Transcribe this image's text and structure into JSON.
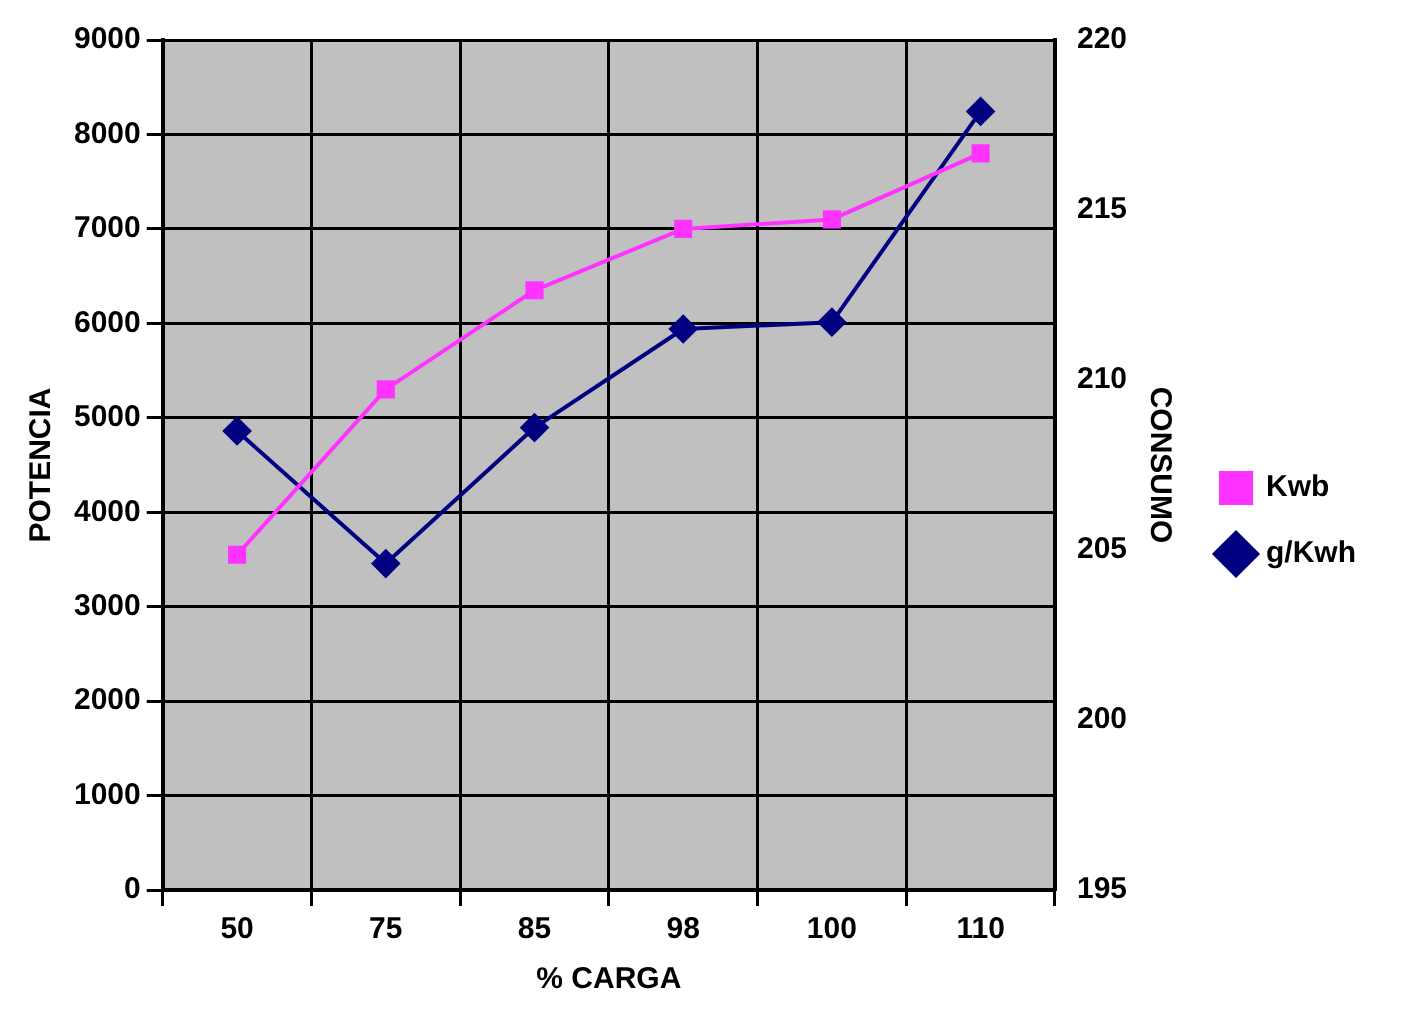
{
  "chart_data": {
    "type": "line",
    "xlabel": "% CARGA",
    "ylabel": "POTENCIA",
    "y2label": "CONSUMO",
    "categories": [
      "50",
      "75",
      "85",
      "98",
      "100",
      "110"
    ],
    "series": [
      {
        "name": "Kwb",
        "color": "#ff33ff",
        "marker": "square",
        "values": [
          3550,
          5300,
          6350,
          7000,
          7100,
          7800
        ]
      },
      {
        "name": "g/Kwh",
        "color": "#000080",
        "marker": "diamond",
        "axis": "y2",
        "values": [
          208.5,
          204.6,
          208.6,
          211.5,
          211.7,
          217.9
        ]
      }
    ],
    "ylim": [
      0,
      9000
    ],
    "yticks": [
      0,
      1000,
      2000,
      3000,
      4000,
      5000,
      6000,
      7000,
      8000,
      9000
    ],
    "y2lim": [
      195,
      220
    ],
    "y2ticks": [
      195,
      200,
      205,
      210,
      215,
      220
    ],
    "grid": true,
    "legend": "right"
  }
}
